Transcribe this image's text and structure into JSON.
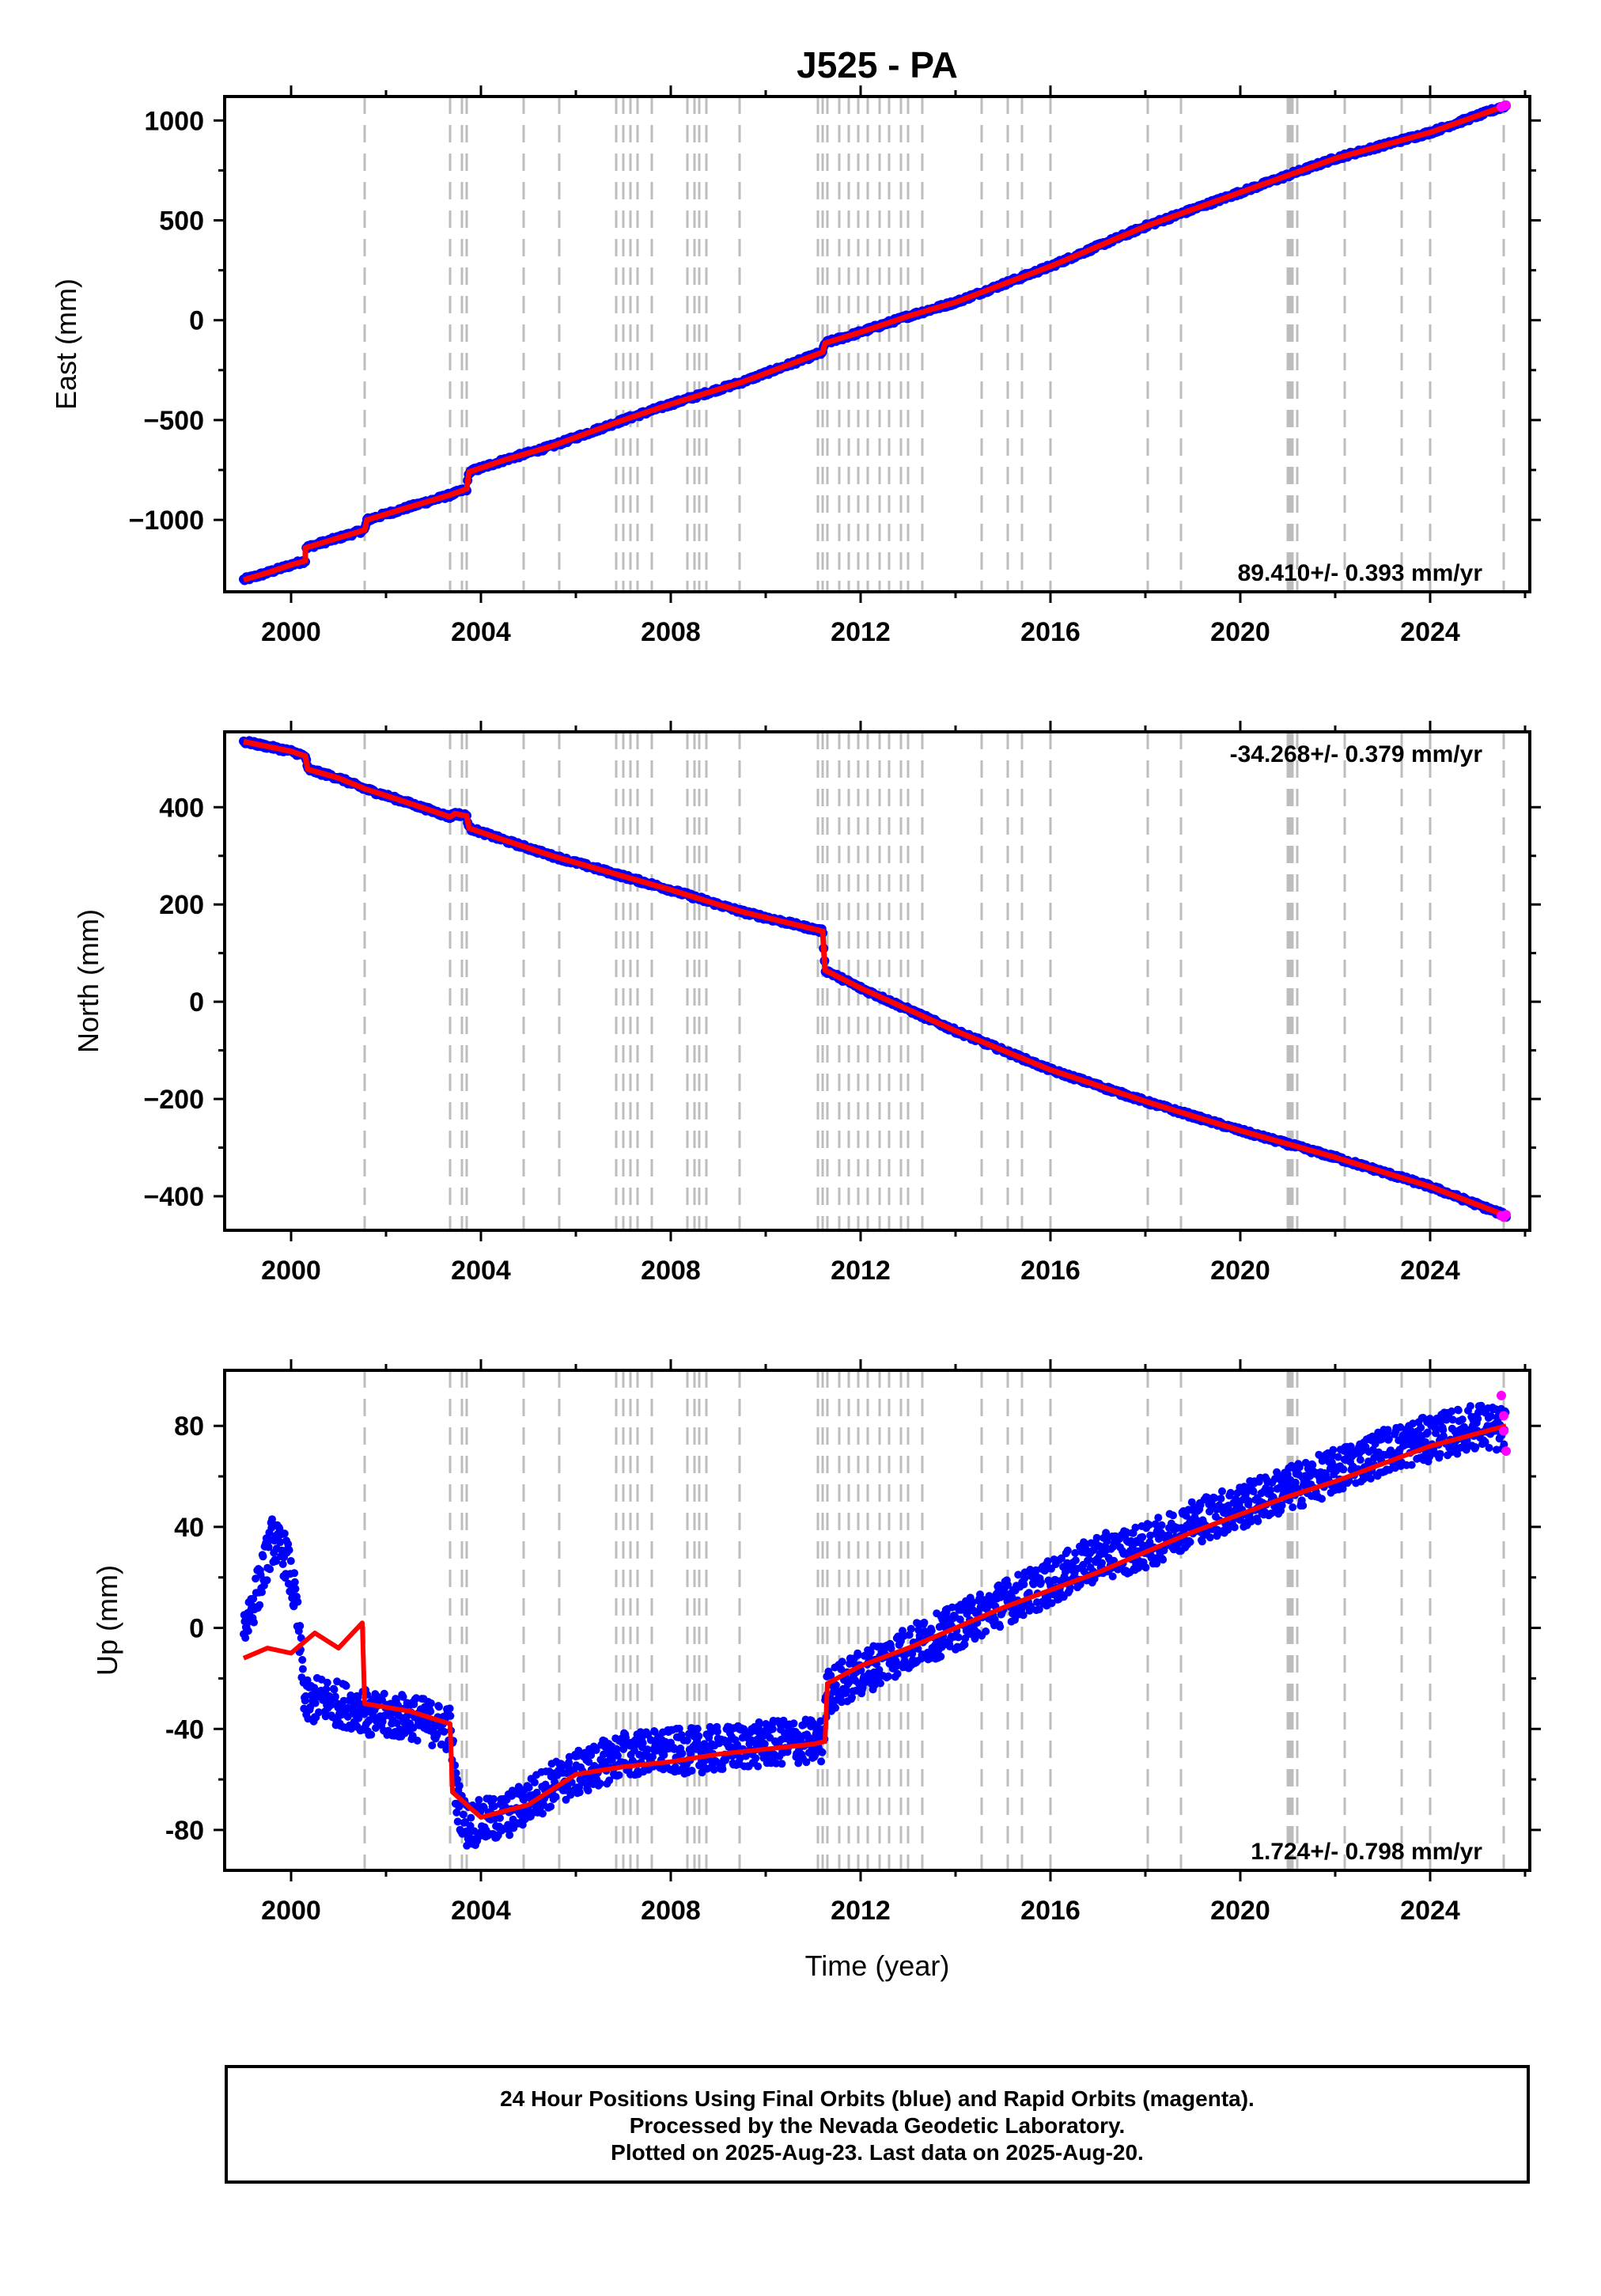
{
  "title": "J525 - PA",
  "x_axis": {
    "label": "Time (year)",
    "range": [
      1998.6,
      2026.1
    ],
    "ticks": [
      2000,
      2004,
      2008,
      2012,
      2016,
      2020,
      2024
    ],
    "tick_labels": [
      "2000",
      "2004",
      "2008",
      "2012",
      "2016",
      "2020",
      "2024"
    ]
  },
  "dashed_lines": [
    2001.55,
    2003.35,
    2003.6,
    2003.7,
    2004.9,
    2005.65,
    2006.85,
    2007.0,
    2007.15,
    2007.3,
    2007.6,
    2008.35,
    2008.5,
    2008.6,
    2008.75,
    2009.45,
    2011.1,
    2011.2,
    2011.3,
    2011.55,
    2011.75,
    2011.95,
    2012.15,
    2012.4,
    2012.6,
    2012.85,
    2013.0,
    2013.3,
    2014.55,
    2015.1,
    2015.4,
    2016.0,
    2018.05,
    2018.75,
    2021.0,
    2021.05,
    2021.1,
    2021.2,
    2022.2,
    2023.4,
    2024.0,
    2025.55
  ],
  "colors": {
    "final_orbits": "#0000ff",
    "rapid_orbits": "#ff00ff",
    "model": "#ff0000",
    "dashed": "#bdbdbd"
  },
  "footer": {
    "line1": "24 Hour Positions Using Final Orbits (blue) and Rapid Orbits (magenta).",
    "line2": "Processed by the Nevada Geodetic Laboratory.",
    "line3": "Plotted on 2025-Aug-23. Last data on 2025-Aug-20."
  },
  "chart_data": [
    {
      "type": "scatter",
      "ylabel": "East (mm)",
      "ylim": [
        -1360,
        1120
      ],
      "yticks": [
        1000,
        500,
        0,
        -500,
        -1000
      ],
      "ytick_labels": [
        "1000",
        "500",
        "0",
        "−500",
        "−1000"
      ],
      "rate_label": "89.410+/- 0.393 mm/yr",
      "rate_position": "bottom-right",
      "series": [
        {
          "x": [
            1999.0,
            1999.5,
            2000.0,
            2000.3,
            2000.3,
            2001.0,
            2001.55,
            2001.6,
            2002.5,
            2003.35,
            2003.7,
            2003.75,
            2004.5,
            2005.5,
            2007.0,
            2008.0,
            2009.5,
            2011.2,
            2011.25,
            2012.0,
            2013.0,
            2014.0,
            2016.0,
            2018.0,
            2020.0,
            2022.0,
            2024.0,
            2025.6
          ],
          "y": [
            -1300,
            -1265,
            -1225,
            -1205,
            -1140,
            -1090,
            -1050,
            -1000,
            -935,
            -875,
            -845,
            -760,
            -700,
            -630,
            -500,
            -420,
            -310,
            -160,
            -115,
            -60,
            20,
            90,
            270,
            470,
            640,
            810,
            940,
            1075
          ]
        }
      ],
      "rapid_orbits": {
        "x": [
          2025.5,
          2025.55,
          2025.6
        ],
        "y": [
          1068,
          1072,
          1077
        ]
      }
    },
    {
      "type": "scatter",
      "ylabel": "North (mm)",
      "ylim": [
        -470,
        555
      ],
      "yticks": [
        400,
        200,
        0,
        -200,
        -400
      ],
      "ytick_labels": [
        "400",
        "200",
        "0",
        "−200",
        "−400"
      ],
      "rate_label": "-34.268+/- 0.379 mm/yr",
      "rate_position": "top-right",
      "series": [
        {
          "x": [
            1999.0,
            1999.5,
            2000.0,
            2000.3,
            2000.35,
            2001.0,
            2001.55,
            2002.5,
            2003.35,
            2003.45,
            2003.7,
            2003.75,
            2004.5,
            2005.5,
            2007.0,
            2008.0,
            2009.5,
            2011.2,
            2011.25,
            2012.0,
            2014.0,
            2016.0,
            2018.0,
            2020.0,
            2022.0,
            2024.0,
            2025.6
          ],
          "y": [
            535,
            525,
            515,
            505,
            478,
            460,
            438,
            408,
            380,
            387,
            382,
            357,
            332,
            300,
            258,
            230,
            185,
            145,
            65,
            28,
            -60,
            -140,
            -205,
            -265,
            -320,
            -380,
            -440
          ]
        }
      ],
      "rapid_orbits": {
        "x": [
          2025.5,
          2025.55,
          2025.6
        ],
        "y": [
          -440,
          -443,
          -438
        ]
      }
    },
    {
      "type": "scatter",
      "ylabel": "Up (mm)",
      "ylim": [
        -96,
        102
      ],
      "yticks": [
        80,
        40,
        0,
        -40,
        -80
      ],
      "ytick_labels": [
        "80",
        "40",
        "0",
        "-40",
        "-80"
      ],
      "rate_label": "1.724+/- 0.798 mm/yr",
      "rate_position": "bottom-right",
      "series": [
        {
          "x": [
            1999.0,
            1999.3,
            1999.6,
            1999.9,
            2000.1,
            2000.3,
            2000.6,
            2001.0,
            2001.55,
            2001.6,
            2002.5,
            2003.35,
            2003.5,
            2003.7,
            2004.5,
            2005.5,
            2007.0,
            2009.0,
            2010.5,
            2011.2,
            2011.3,
            2012.0,
            2013.0,
            2014.0,
            2015.0,
            2016.0,
            2017.0,
            2018.0,
            2019.0,
            2020.0,
            2021.0,
            2022.0,
            2023.0,
            2024.0,
            2025.0,
            2025.6
          ],
          "y": [
            0,
            15,
            35,
            28,
            10,
            -30,
            -28,
            -30,
            -32,
            -35,
            -35,
            -40,
            -68,
            -78,
            -75,
            -62,
            -50,
            -48,
            -45,
            -45,
            -25,
            -18,
            -8,
            0,
            10,
            18,
            28,
            32,
            42,
            48,
            55,
            62,
            70,
            75,
            80,
            78
          ]
        }
      ],
      "model": {
        "x": [
          1999.0,
          1999.5,
          2000.0,
          2000.5,
          2001.0,
          2001.5,
          2001.55,
          2002.5,
          2003.35,
          2003.4,
          2004.0,
          2005.0,
          2006.0,
          2007.0,
          2008.0,
          2009.0,
          2010.0,
          2011.0,
          2011.25,
          2011.3,
          2012.0,
          2013.0,
          2014.0,
          2015.0,
          2016.0,
          2017.0,
          2018.0,
          2019.0,
          2020.0,
          2021.0,
          2022.0,
          2023.0,
          2024.0,
          2025.0,
          2025.6
        ],
        "y": [
          -12,
          -8,
          -10,
          -2,
          -8,
          2,
          -30,
          -33,
          -38,
          -65,
          -75,
          -70,
          -58,
          -55,
          -53,
          -50,
          -48,
          -46,
          -45,
          -22,
          -15,
          -8,
          0,
          8,
          15,
          22,
          30,
          38,
          45,
          52,
          58,
          65,
          72,
          77,
          80
        ]
      },
      "rapid_orbits": {
        "x": [
          2025.5,
          2025.55,
          2025.6,
          2025.55
        ],
        "y": [
          92,
          84,
          70,
          78
        ]
      }
    }
  ]
}
